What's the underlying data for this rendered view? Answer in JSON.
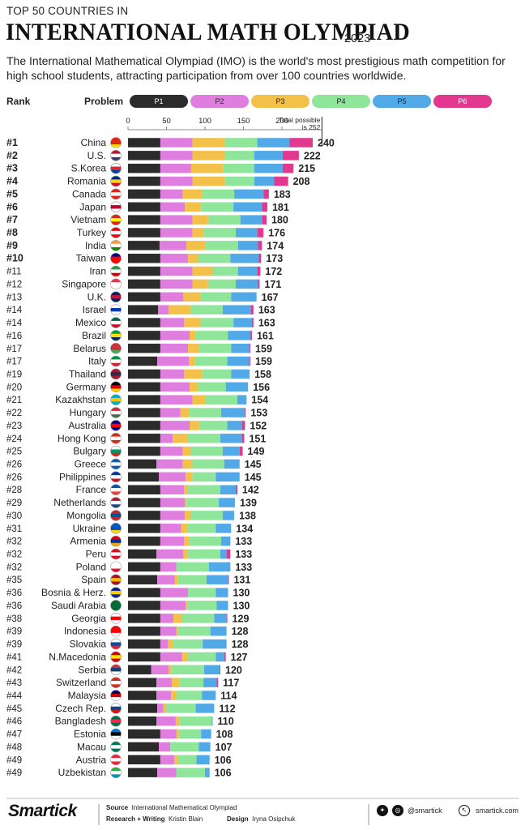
{
  "header": {
    "kicker": "TOP 50 COUNTRIES IN",
    "headline": "INTERNATIONAL MATH OLYMPIAD",
    "year": "2023",
    "intro": "The International Mathematical Olympiad (IMO) is the world's most prestigious math competition for high school students, attracting participation from over 100 countries worldwide."
  },
  "legend": {
    "rank_label": "Rank",
    "problem_label": "Problem",
    "items": [
      {
        "label": "P1",
        "color": "#2b2b2b",
        "text_color": "#ffffff"
      },
      {
        "label": "P2",
        "color": "#e07ee0",
        "text_color": "#222222"
      },
      {
        "label": "P3",
        "color": "#f3c04a",
        "text_color": "#222222"
      },
      {
        "label": "P4",
        "color": "#8fe59a",
        "text_color": "#222222"
      },
      {
        "label": "P5",
        "color": "#52a9e8",
        "text_color": "#222222"
      },
      {
        "label": "P6",
        "color": "#e2388f",
        "text_color": "#ffffff"
      }
    ]
  },
  "chart_data": {
    "type": "bar",
    "orientation": "horizontal",
    "stacked": true,
    "xlim": [
      0,
      252
    ],
    "xticks": [
      0,
      50,
      100,
      150,
      200
    ],
    "max_line_label": "Total possible is 252",
    "series_names": [
      "P1",
      "P2",
      "P3",
      "P4",
      "P5",
      "P6"
    ],
    "rows": [
      {
        "rank": "#1",
        "country": "China",
        "flag": "china",
        "segments": [
          42,
          42,
          42,
          42,
          42,
          30
        ],
        "total": 240
      },
      {
        "rank": "#2",
        "country": "U.S.",
        "flag": "us",
        "segments": [
          42,
          42,
          42,
          38,
          37,
          21
        ],
        "total": 222
      },
      {
        "rank": "#3",
        "country": "S.Korea",
        "flag": "skorea",
        "segments": [
          42,
          40,
          42,
          40,
          37,
          14
        ],
        "total": 215
      },
      {
        "rank": "#4",
        "country": "Romania",
        "flag": "romania",
        "segments": [
          42,
          42,
          42,
          38,
          26,
          18
        ],
        "total": 208
      },
      {
        "rank": "#5",
        "country": "Canada",
        "flag": "canada",
        "segments": [
          42,
          29,
          25,
          42,
          38,
          7
        ],
        "total": 183
      },
      {
        "rank": "#6",
        "country": "Japan",
        "flag": "japan",
        "segments": [
          42,
          32,
          21,
          42,
          37,
          7
        ],
        "total": 181
      },
      {
        "rank": "#7",
        "country": "Vietnam",
        "flag": "vietnam",
        "segments": [
          42,
          42,
          20,
          42,
          28,
          6
        ],
        "total": 180
      },
      {
        "rank": "#8",
        "country": "Turkey",
        "flag": "turkey",
        "segments": [
          42,
          42,
          14,
          42,
          28,
          8
        ],
        "total": 176
      },
      {
        "rank": "#9",
        "country": "India",
        "flag": "india",
        "segments": [
          41,
          35,
          25,
          42,
          26,
          5
        ],
        "total": 174
      },
      {
        "rank": "#10",
        "country": "Taiwan",
        "flag": "taiwan",
        "segments": [
          42,
          36,
          13,
          42,
          37,
          3
        ],
        "total": 173
      },
      {
        "rank": "#11",
        "country": "Iran",
        "flag": "iran",
        "segments": [
          42,
          42,
          26,
          33,
          25,
          4
        ],
        "total": 172
      },
      {
        "rank": "#12",
        "country": "Singapore",
        "flag": "singapore",
        "segments": [
          42,
          42,
          20,
          36,
          29,
          2
        ],
        "total": 171
      },
      {
        "rank": "#13",
        "country": "U.K.",
        "flag": "uk",
        "segments": [
          42,
          30,
          22,
          40,
          33,
          0
        ],
        "total": 167
      },
      {
        "rank": "#14",
        "country": "Israel",
        "flag": "israel",
        "segments": [
          39,
          14,
          28,
          42,
          37,
          3
        ],
        "total": 163
      },
      {
        "rank": "#14",
        "country": "Mexico",
        "flag": "mexico",
        "segments": [
          42,
          31,
          22,
          42,
          24,
          2
        ],
        "total": 163
      },
      {
        "rank": "#16",
        "country": "Brazil",
        "flag": "brazil",
        "segments": [
          42,
          38,
          8,
          42,
          29,
          2
        ],
        "total": 161
      },
      {
        "rank": "#17",
        "country": "Belarus",
        "flag": "belarus",
        "segments": [
          42,
          36,
          14,
          42,
          24,
          1
        ],
        "total": 159
      },
      {
        "rank": "#17",
        "country": "Italy",
        "flag": "italy",
        "segments": [
          38,
          41,
          8,
          42,
          29,
          1
        ],
        "total": 159
      },
      {
        "rank": "#19",
        "country": "Thailand",
        "flag": "thailand",
        "segments": [
          42,
          31,
          24,
          37,
          24,
          0
        ],
        "total": 158
      },
      {
        "rank": "#20",
        "country": "Germany",
        "flag": "germany",
        "segments": [
          42,
          38,
          11,
          36,
          29,
          0
        ],
        "total": 156
      },
      {
        "rank": "#21",
        "country": "Kazakhstan",
        "flag": "kazakhstan",
        "segments": [
          42,
          42,
          17,
          41,
          12,
          0
        ],
        "total": 154
      },
      {
        "rank": "#22",
        "country": "Hungary",
        "flag": "hungary",
        "segments": [
          42,
          26,
          11,
          42,
          31,
          1
        ],
        "total": 153
      },
      {
        "rank": "#23",
        "country": "Australia",
        "flag": "australia",
        "segments": [
          42,
          38,
          13,
          36,
          19,
          4
        ],
        "total": 152
      },
      {
        "rank": "#24",
        "country": "Hong Kong",
        "flag": "hongkong",
        "segments": [
          42,
          16,
          20,
          42,
          28,
          3
        ],
        "total": 151
      },
      {
        "rank": "#25",
        "country": "Bulgary",
        "flag": "bulgaria",
        "segments": [
          42,
          29,
          10,
          42,
          22,
          4
        ],
        "total": 149
      },
      {
        "rank": "#26",
        "country": "Greece",
        "flag": "greece",
        "segments": [
          37,
          34,
          12,
          42,
          20,
          0
        ],
        "total": 145
      },
      {
        "rank": "#26",
        "country": "Philippines",
        "flag": "philippines",
        "segments": [
          40,
          35,
          9,
          30,
          31,
          0
        ],
        "total": 145
      },
      {
        "rank": "#28",
        "country": "France",
        "flag": "france",
        "segments": [
          42,
          31,
          5,
          42,
          20,
          2
        ],
        "total": 142
      },
      {
        "rank": "#29",
        "country": "Netherlands",
        "flag": "netherlands",
        "segments": [
          42,
          32,
          2,
          42,
          21,
          0
        ],
        "total": 139
      },
      {
        "rank": "#30",
        "country": "Mongolia",
        "flag": "mongolia",
        "segments": [
          42,
          32,
          7,
          42,
          15,
          0
        ],
        "total": 138
      },
      {
        "rank": "#31",
        "country": "Ukraine",
        "flag": "ukraine",
        "segments": [
          42,
          27,
          8,
          37,
          20,
          0
        ],
        "total": 134
      },
      {
        "rank": "#32",
        "country": "Armenia",
        "flag": "armenia",
        "segments": [
          42,
          31,
          6,
          42,
          12,
          0
        ],
        "total": 133
      },
      {
        "rank": "#32",
        "country": "Peru",
        "flag": "peru",
        "segments": [
          37,
          35,
          6,
          42,
          8,
          5
        ],
        "total": 133
      },
      {
        "rank": "#32",
        "country": "Poland",
        "flag": "poland",
        "segments": [
          42,
          21,
          0,
          42,
          28,
          0
        ],
        "total": 133
      },
      {
        "rank": "#35",
        "country": "Spain",
        "flag": "spain",
        "segments": [
          38,
          23,
          4,
          37,
          28,
          1
        ],
        "total": 131
      },
      {
        "rank": "#36",
        "country": "Bosnia & Herz.",
        "flag": "bosnia",
        "segments": [
          42,
          36,
          0,
          36,
          16,
          0
        ],
        "total": 130
      },
      {
        "rank": "#36",
        "country": "Saudi Arabia",
        "flag": "saudi",
        "segments": [
          42,
          33,
          3,
          37,
          15,
          0
        ],
        "total": 130
      },
      {
        "rank": "#38",
        "country": "Georgia",
        "flag": "georgia",
        "segments": [
          42,
          17,
          11,
          42,
          16,
          1
        ],
        "total": 129
      },
      {
        "rank": "#39",
        "country": "Indonesia",
        "flag": "indonesia",
        "segments": [
          42,
          21,
          2,
          42,
          21,
          0
        ],
        "total": 128
      },
      {
        "rank": "#39",
        "country": "Slovakia",
        "flag": "slovakia",
        "segments": [
          42,
          10,
          6,
          39,
          31,
          0
        ],
        "total": 128
      },
      {
        "rank": "#41",
        "country": "N.Macedonia",
        "flag": "macedonia",
        "segments": [
          42,
          28,
          8,
          36,
          11,
          2
        ],
        "total": 127
      },
      {
        "rank": "#42",
        "country": "Serbia",
        "flag": "serbia",
        "segments": [
          30,
          23,
          4,
          42,
          20,
          1
        ],
        "total": 120
      },
      {
        "rank": "#43",
        "country": "Switzerland",
        "flag": "switzerland",
        "segments": [
          37,
          20,
          10,
          31,
          17,
          2
        ],
        "total": 117
      },
      {
        "rank": "#44",
        "country": "Malaysia",
        "flag": "malaysia",
        "segments": [
          37,
          19,
          7,
          33,
          18,
          0
        ],
        "total": 114
      },
      {
        "rank": "#45",
        "country": "Czech Rep.",
        "flag": "czech",
        "segments": [
          38,
          8,
          3,
          39,
          24,
          0
        ],
        "total": 112
      },
      {
        "rank": "#46",
        "country": "Bangladesh",
        "flag": "bangladesh",
        "segments": [
          37,
          25,
          5,
          42,
          1,
          0
        ],
        "total": 110
      },
      {
        "rank": "#47",
        "country": "Estonia",
        "flag": "estonia",
        "segments": [
          42,
          21,
          3,
          29,
          13,
          0
        ],
        "total": 108
      },
      {
        "rank": "#48",
        "country": "Macau",
        "flag": "macau",
        "segments": [
          40,
          15,
          0,
          37,
          15,
          0
        ],
        "total": 107
      },
      {
        "rank": "#49",
        "country": "Austria",
        "flag": "austria",
        "segments": [
          42,
          18,
          5,
          24,
          17,
          0
        ],
        "total": 106
      },
      {
        "rank": "#49",
        "country": "Uzbekistan",
        "flag": "uzbekistan",
        "segments": [
          38,
          25,
          0,
          37,
          6,
          0
        ],
        "total": 106
      }
    ]
  },
  "footer": {
    "brand": "Smartick",
    "source_label": "Source",
    "source_value": "International Mathematical Olympiad",
    "research_label": "Research + Writing",
    "research_value": "Kristin Blain",
    "design_label": "Design",
    "design_value": "Iryna Osipchuk",
    "handle": "@smartick",
    "site": "smartick.com",
    "icons": [
      "twitter-icon",
      "instagram-icon",
      "cursor-icon"
    ]
  }
}
